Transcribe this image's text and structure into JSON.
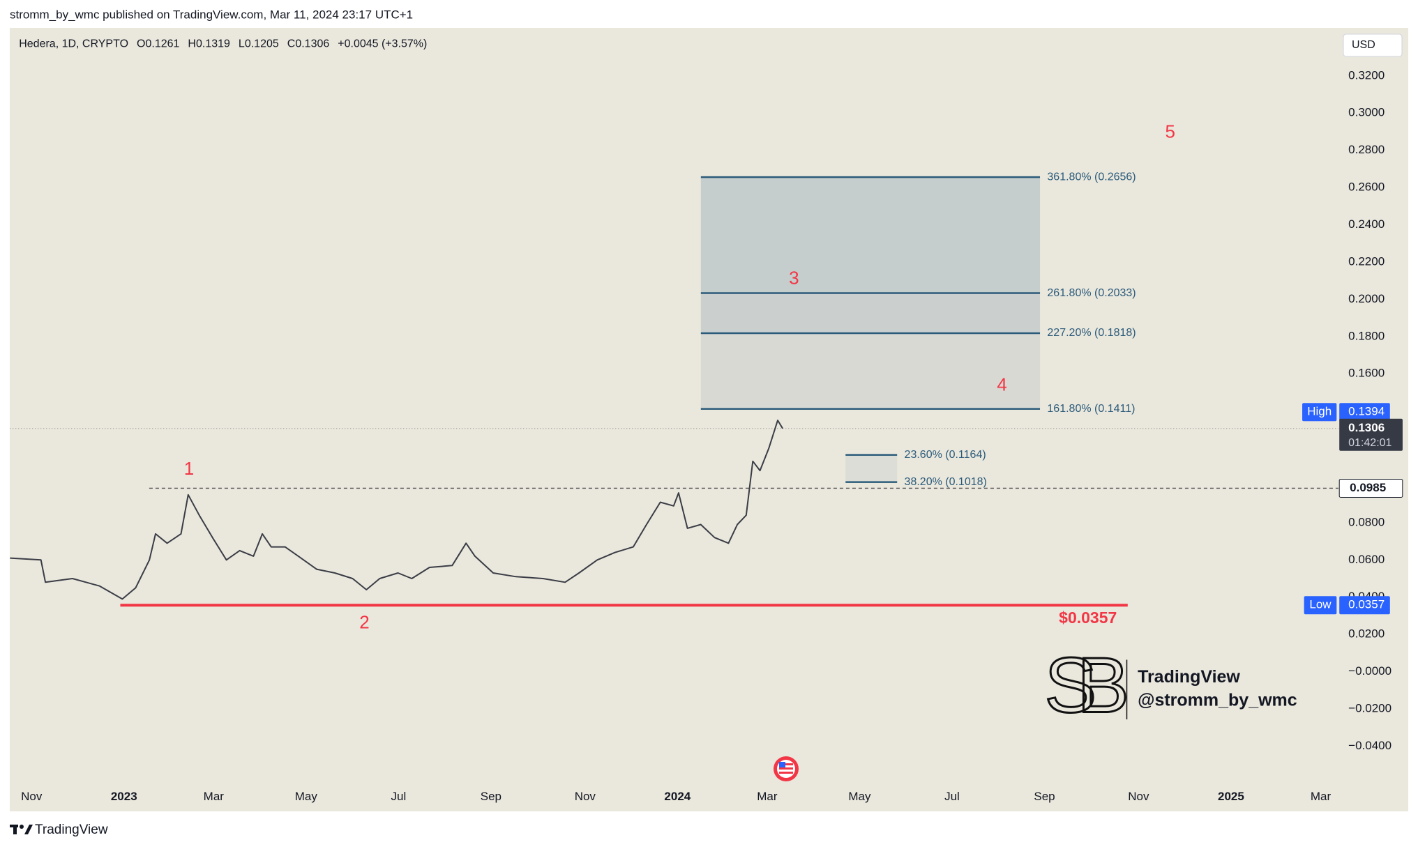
{
  "header": {
    "publisher": "stromm_by_wmc published on TradingView.com, Mar 11, 2024 23:17 UTC+1"
  },
  "chart_data": {
    "type": "line",
    "symbol": "Hedera, 1D, CRYPTO",
    "ohlc": [
      "O0.1261",
      "H0.1319",
      "L0.1205",
      "C0.1306",
      "+0.0045 (+3.57%)"
    ],
    "currency": "USD",
    "color": "#3a3d45",
    "x": [
      2022.794,
      2022.85,
      2022.858,
      2022.907,
      2022.956,
      2022.997,
      2023.021,
      2023.046,
      2023.057,
      2023.078,
      2023.103,
      2023.116,
      2023.136,
      2023.16,
      2023.185,
      2023.209,
      2023.234,
      2023.25,
      2023.266,
      2023.291,
      2023.315,
      2023.348,
      2023.381,
      2023.413,
      2023.438,
      2023.462,
      2023.495,
      2023.52,
      2023.552,
      2023.593,
      2023.618,
      2023.634,
      2023.667,
      2023.708,
      2023.757,
      2023.797,
      2023.822,
      2023.855,
      2023.887,
      2023.92,
      2023.944,
      2023.969,
      2023.993,
      2024.002,
      2024.018,
      2024.042,
      2024.067,
      2024.092,
      2024.108,
      2024.124,
      2024.136,
      2024.149,
      2024.165,
      2024.181,
      2024.19
    ],
    "values": [
      0.061,
      0.06,
      0.048,
      0.05,
      0.046,
      0.039,
      0.045,
      0.06,
      0.074,
      0.069,
      0.074,
      0.095,
      0.084,
      0.072,
      0.06,
      0.065,
      0.062,
      0.074,
      0.067,
      0.067,
      0.062,
      0.055,
      0.053,
      0.05,
      0.044,
      0.05,
      0.053,
      0.05,
      0.056,
      0.057,
      0.069,
      0.062,
      0.053,
      0.051,
      0.05,
      0.048,
      0.053,
      0.06,
      0.064,
      0.067,
      0.079,
      0.091,
      0.089,
      0.096,
      0.077,
      0.079,
      0.072,
      0.069,
      0.079,
      0.084,
      0.113,
      0.108,
      0.12,
      0.135,
      0.1306
    ],
    "xlim": [
      2022.794,
      2025.194
    ],
    "xticks": [
      {
        "value": 2022.833,
        "label": "Nov"
      },
      2023,
      {
        "value": 2023.162,
        "label": "Mar"
      },
      {
        "value": 2023.329,
        "label": "May"
      },
      {
        "value": 2023.496,
        "label": "Jul"
      },
      {
        "value": 2023.663,
        "label": "Sep"
      },
      {
        "value": 2023.833,
        "label": "Nov"
      },
      2024,
      {
        "value": 2024.162,
        "label": "Mar"
      },
      {
        "value": 2024.329,
        "label": "May"
      },
      {
        "value": 2024.496,
        "label": "Jul"
      },
      {
        "value": 2024.663,
        "label": "Sep"
      },
      {
        "value": 2024.833,
        "label": "Nov"
      },
      2025,
      {
        "value": 2025.162,
        "label": "Mar"
      }
    ],
    "ylim": [
      -0.0606,
      0.3457
    ],
    "yticks": [
      {
        "value": 0.32,
        "label": "0.3200"
      },
      {
        "value": 0.3,
        "label": "0.3000"
      },
      {
        "value": 0.28,
        "label": "0.2800"
      },
      {
        "value": 0.26,
        "label": "0.2600"
      },
      {
        "value": 0.24,
        "label": "0.2400"
      },
      {
        "value": 0.22,
        "label": "0.2200"
      },
      {
        "value": 0.2,
        "label": "0.2000"
      },
      {
        "value": 0.18,
        "label": "0.1800"
      },
      {
        "value": 0.16,
        "label": "0.1600"
      },
      {
        "value": 0.08,
        "label": "0.0800"
      },
      {
        "value": 0.06,
        "label": "0.0600"
      },
      {
        "value": 0.04,
        "label": "0.0400"
      },
      {
        "value": 0.02,
        "label": "0.0200"
      },
      {
        "value": 0,
        "label": "−0.0000"
      },
      {
        "value": -0.02,
        "label": "−0.0200"
      },
      {
        "value": -0.04,
        "label": "−0.0400"
      }
    ],
    "fib_levels": [
      {
        "label": "361.80% (0.2656)",
        "value": 0.2656
      },
      {
        "label": "261.80% (0.2033)",
        "value": 0.2033
      },
      {
        "label": "227.20% (0.1818)",
        "value": 0.1818
      },
      {
        "label": "161.80% (0.1411)",
        "value": 0.1411
      }
    ],
    "retracements": [
      {
        "label": "23.60% (0.1164)",
        "value": 0.1164
      },
      {
        "label": "38.20% (0.1018)",
        "value": 0.1018
      }
    ],
    "waves": [
      "1",
      "2",
      "3",
      "4",
      "5"
    ],
    "resistance": {
      "value": 0.0985
    },
    "support": {
      "value": 0.0357,
      "value_label": "$0.0357",
      "color": "#f23645"
    },
    "high": {
      "label": "High",
      "value": 0.1394
    },
    "low": {
      "label": "Low",
      "value": 0.0357
    },
    "last": {
      "value": 0.1306,
      "countdown": "01:42:01"
    }
  },
  "watermark": {
    "logo": "SB",
    "brand": "TradingView",
    "handle": "@stromm_by_wmc"
  },
  "footer": {
    "brand": "TradingView"
  }
}
